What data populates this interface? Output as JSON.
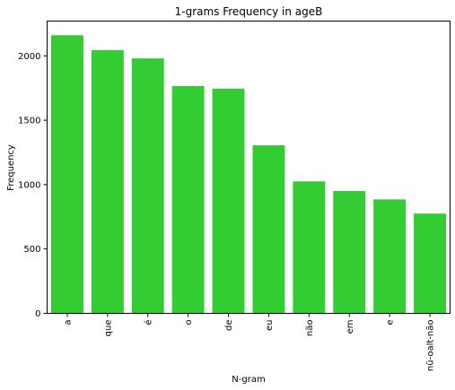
{
  "chart_data": {
    "type": "bar",
    "title": "1-grams Frequency in ageB",
    "xlabel": "N-gram",
    "ylabel": "Frequency",
    "categories": [
      "a",
      "que",
      "é",
      "o",
      "de",
      "eu",
      "não",
      "em",
      "e",
      "nũ-oalt-não"
    ],
    "values": [
      2160,
      2045,
      1980,
      1765,
      1745,
      1305,
      1025,
      950,
      885,
      775
    ],
    "ylim": [
      0,
      2270
    ],
    "yticks": [
      0,
      500,
      1000,
      1500,
      2000
    ],
    "bar_color": "#33cc33",
    "grid": false
  }
}
